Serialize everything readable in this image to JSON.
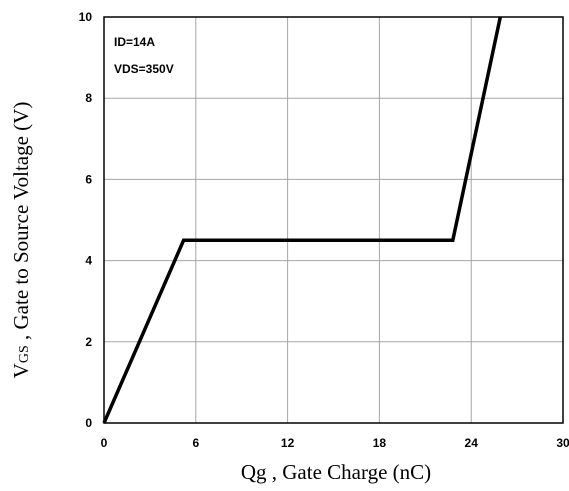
{
  "chart_data": {
    "type": "line",
    "title": "",
    "xlabel": "Qg , Gate Charge (nC)",
    "ylabel_main": "V",
    "ylabel_sub": "GS",
    "ylabel_rest": " , Gate to Source Voltage (V)",
    "xlim": [
      0,
      30
    ],
    "ylim": [
      0,
      10
    ],
    "xticks": [
      0,
      6,
      12,
      18,
      24,
      30
    ],
    "yticks": [
      0,
      2,
      4,
      6,
      8,
      10
    ],
    "grid": true,
    "annotations": [
      "ID=14A",
      "VDS=350V"
    ],
    "series": [
      {
        "x": [
          0,
          5.2,
          22.8,
          25.9
        ],
        "y": [
          0,
          4.5,
          4.5,
          10
        ]
      }
    ],
    "line_color": "#000000",
    "grid_color": "#a6a6a6"
  }
}
